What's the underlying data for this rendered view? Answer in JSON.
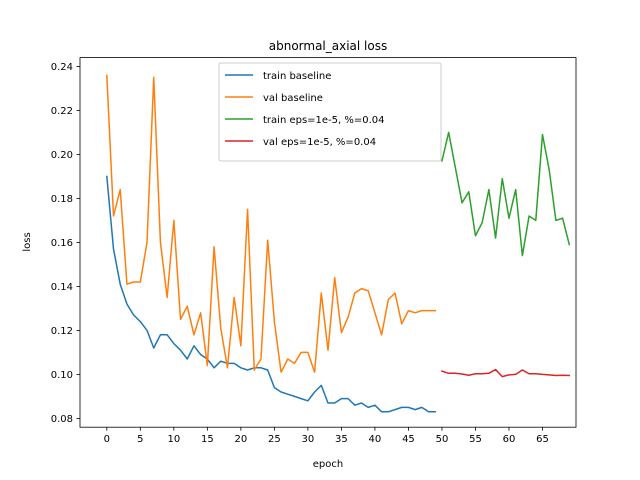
{
  "chart_data": {
    "type": "line",
    "title": "abnormal_axial loss",
    "xlabel": "epoch",
    "ylabel": "loss",
    "xlim": [
      -4,
      70
    ],
    "ylim": [
      0.076,
      0.244
    ],
    "xticks": [
      0,
      5,
      10,
      15,
      20,
      25,
      30,
      35,
      40,
      45,
      50,
      55,
      60,
      65
    ],
    "yticks": [
      0.08,
      0.1,
      0.12,
      0.14,
      0.16,
      0.18,
      0.2,
      0.22,
      0.24
    ],
    "grid": false,
    "legend_position": "top-center",
    "series": [
      {
        "name": "train baseline",
        "color": "#1f77b4",
        "x": [
          0,
          1,
          2,
          3,
          4,
          5,
          6,
          7,
          8,
          9,
          10,
          11,
          12,
          13,
          14,
          15,
          16,
          17,
          18,
          19,
          20,
          21,
          22,
          23,
          24,
          25,
          26,
          27,
          28,
          29,
          30,
          31,
          32,
          33,
          34,
          35,
          36,
          37,
          38,
          39,
          40,
          41,
          42,
          43,
          44,
          45,
          46,
          47,
          48,
          49
        ],
        "values": [
          0.19,
          0.157,
          0.141,
          0.132,
          0.127,
          0.124,
          0.12,
          0.112,
          0.118,
          0.118,
          0.114,
          0.111,
          0.107,
          0.113,
          0.109,
          0.107,
          0.103,
          0.106,
          0.105,
          0.105,
          0.103,
          0.102,
          0.103,
          0.103,
          0.102,
          0.094,
          0.092,
          0.091,
          0.09,
          0.089,
          0.088,
          0.092,
          0.095,
          0.087,
          0.087,
          0.089,
          0.089,
          0.086,
          0.087,
          0.085,
          0.086,
          0.083,
          0.083,
          0.084,
          0.085,
          0.085,
          0.084,
          0.085,
          0.083,
          0.083
        ]
      },
      {
        "name": "val baseline",
        "color": "#ff7f0e",
        "x": [
          0,
          1,
          2,
          3,
          4,
          5,
          6,
          7,
          8,
          9,
          10,
          11,
          12,
          13,
          14,
          15,
          16,
          17,
          18,
          19,
          20,
          21,
          22,
          23,
          24,
          25,
          26,
          27,
          28,
          29,
          30,
          31,
          32,
          33,
          34,
          35,
          36,
          37,
          38,
          39,
          40,
          41,
          42,
          43,
          44,
          45,
          46,
          47,
          48,
          49
        ],
        "values": [
          0.236,
          0.172,
          0.184,
          0.141,
          0.142,
          0.142,
          0.16,
          0.235,
          0.16,
          0.135,
          0.17,
          0.125,
          0.131,
          0.118,
          0.128,
          0.104,
          0.158,
          0.121,
          0.103,
          0.135,
          0.113,
          0.175,
          0.102,
          0.107,
          0.161,
          0.124,
          0.101,
          0.107,
          0.105,
          0.11,
          0.11,
          0.101,
          0.137,
          0.111,
          0.144,
          0.119,
          0.126,
          0.137,
          0.139,
          0.138,
          0.128,
          0.118,
          0.134,
          0.137,
          0.123,
          0.129,
          0.128,
          0.129,
          0.129,
          0.129
        ]
      },
      {
        "name": "train eps=1e-5, %=0.04",
        "color": "#2ca02c",
        "x": [
          50,
          51,
          52,
          53,
          54,
          55,
          56,
          57,
          58,
          59,
          60,
          61,
          62,
          63,
          64,
          65,
          66,
          67,
          68,
          69
        ],
        "values": [
          0.197,
          0.21,
          0.194,
          0.178,
          0.183,
          0.163,
          0.169,
          0.184,
          0.162,
          0.189,
          0.171,
          0.184,
          0.154,
          0.172,
          0.17,
          0.209,
          0.193,
          0.17,
          0.171,
          0.159
        ]
      },
      {
        "name": "val eps=1e-5, %=0.04",
        "color": "#d62728",
        "x": [
          50,
          51,
          52,
          53,
          54,
          55,
          56,
          57,
          58,
          59,
          60,
          61,
          62,
          63,
          64,
          65,
          66,
          67,
          68,
          69
        ],
        "values": [
          0.1015,
          0.1005,
          0.1005,
          0.1002,
          0.0996,
          0.1003,
          0.1003,
          0.1005,
          0.1022,
          0.099,
          0.0998,
          0.1,
          0.102,
          0.1003,
          0.1003,
          0.1,
          0.0998,
          0.0995,
          0.0996,
          0.0995
        ]
      }
    ]
  }
}
